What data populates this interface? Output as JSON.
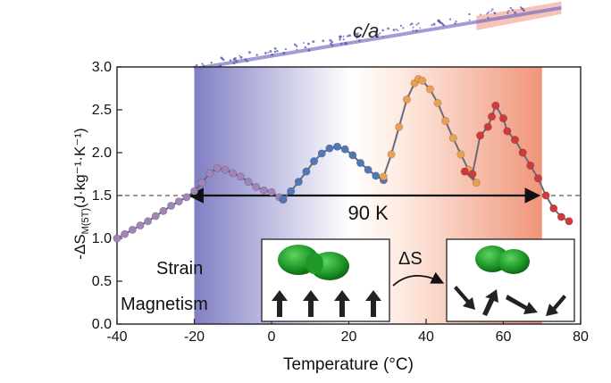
{
  "chart_data": {
    "type": "scatter",
    "xlabel": "Temperature (°C)",
    "ylabel_main": "-ΔS",
    "ylabel_sub": "M(5T)",
    "ylabel_units": "(J·kg⁻¹·K⁻¹)",
    "xlim": [
      -40,
      80
    ],
    "ylim": [
      0.0,
      3.0
    ],
    "xticks": [
      "-40",
      "-20",
      "0",
      "20",
      "40",
      "60",
      "80"
    ],
    "yticks": [
      "0.0",
      "0.5",
      "1.0",
      "1.5",
      "2.0",
      "2.5",
      "3.0"
    ],
    "ca_label": "c/a",
    "reference_line_y": 1.5,
    "span_label": "90 K",
    "span_range": [
      -20,
      70
    ],
    "shaded_range": [
      -20,
      70
    ],
    "shade_colors": {
      "left": "#7a78c0",
      "right": "#ef8f72"
    },
    "series": [
      {
        "color": "#a184b8",
        "x": [
          -40,
          -38,
          -36,
          -34,
          -32,
          -30,
          -28,
          -26,
          -24,
          -22,
          -20,
          -18,
          -16,
          -14,
          -12,
          -10,
          -8,
          -6,
          -4,
          -2,
          0,
          2,
          3
        ],
        "y": [
          1.0,
          1.05,
          1.1,
          1.15,
          1.2,
          1.26,
          1.32,
          1.38,
          1.43,
          1.48,
          1.55,
          1.65,
          1.76,
          1.82,
          1.8,
          1.76,
          1.72,
          1.66,
          1.6,
          1.56,
          1.54,
          1.48,
          1.45
        ]
      },
      {
        "color": "#4f78b5",
        "x": [
          3,
          5,
          7,
          9,
          11,
          13,
          15,
          17,
          19,
          21,
          23,
          25,
          27,
          29
        ],
        "y": [
          1.46,
          1.55,
          1.66,
          1.78,
          1.9,
          1.99,
          2.05,
          2.07,
          2.04,
          1.97,
          1.88,
          1.8,
          1.73,
          1.68
        ]
      },
      {
        "color": "#e9a055",
        "x": [
          29,
          31,
          33,
          35,
          37,
          38,
          39,
          41,
          43,
          45,
          47,
          49,
          51,
          53
        ],
        "y": [
          1.72,
          1.98,
          2.3,
          2.62,
          2.81,
          2.86,
          2.84,
          2.74,
          2.58,
          2.37,
          2.17,
          1.98,
          1.8,
          1.65
        ]
      },
      {
        "color": "#cf3b3b",
        "x": [
          50,
          52,
          54,
          56,
          57,
          58,
          60,
          61,
          63,
          65,
          67,
          69,
          71,
          73,
          75,
          77
        ],
        "y": [
          1.78,
          1.75,
          2.2,
          2.3,
          2.42,
          2.55,
          2.4,
          2.25,
          2.15,
          2.0,
          1.85,
          1.7,
          1.5,
          1.35,
          1.25,
          1.2
        ]
      }
    ],
    "ca_band": {
      "x_start": -20,
      "x_end": 75,
      "y_start": 3.0,
      "y_end": 3.7
    }
  },
  "insets": {
    "strain_label": "Strain",
    "magnetism_label": "Magnetism",
    "delta_s_label": "ΔS"
  },
  "icons": {
    "spin_arrows_ordered": "arrow-up-icon",
    "spin_arrows_disordered": "arrow-diagonal-icon",
    "transition_arrow": "curved-arrow-icon"
  },
  "colors": {
    "purple_marker": "#a184b8",
    "blue_marker": "#4f78b5",
    "orange_marker": "#e9a055",
    "red_marker": "#cf3b3b",
    "fit_line": "#6a6a7a",
    "grain": "#2f9a2f"
  }
}
